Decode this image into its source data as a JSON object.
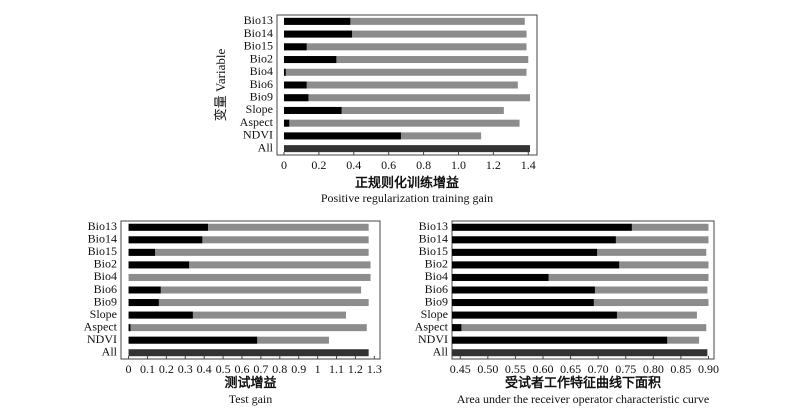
{
  "chart_data": [
    {
      "type": "bar",
      "orientation": "horizontal",
      "y_label": "变量 Variable",
      "x_label": "正规则化训练增益",
      "x_label_en": "Positive regularization training gain",
      "categories": [
        "Bio13",
        "Bio14",
        "Bio15",
        "Bio2",
        "Bio4",
        "Bio6",
        "Bio9",
        "Slope",
        "Aspect",
        "NDVI",
        "All"
      ],
      "series": [
        {
          "color": "#8c8c8c",
          "values": [
            1.38,
            1.39,
            1.39,
            1.4,
            1.39,
            1.34,
            1.41,
            1.26,
            1.35,
            1.13,
            null
          ]
        },
        {
          "color": "#000000",
          "values": [
            0.38,
            0.39,
            0.13,
            0.3,
            0.01,
            0.13,
            0.14,
            0.33,
            0.03,
            0.67,
            null
          ]
        },
        {
          "color": "#333333",
          "values": [
            null,
            null,
            null,
            null,
            null,
            null,
            null,
            null,
            null,
            null,
            1.41
          ]
        }
      ],
      "xlim": [
        -0.04,
        1.45
      ],
      "xticks": [
        0,
        0.2,
        0.4,
        0.6,
        0.8,
        {
          "value": 1,
          "label": "1.0"
        },
        1.2,
        1.4
      ]
    },
    {
      "type": "bar",
      "orientation": "horizontal",
      "x_label": "测试增益",
      "x_label_en": "Test gain",
      "categories": [
        "Bio13",
        "Bio14",
        "Bio15",
        "Bio2",
        "Bio4",
        "Bio6",
        "Bio9",
        "Slope",
        "Aspect",
        "NDVI",
        "All"
      ],
      "series": [
        {
          "color": "#8c8c8c",
          "values": [
            1.27,
            1.27,
            1.27,
            1.28,
            1.28,
            1.23,
            1.27,
            1.15,
            1.26,
            1.06,
            null
          ]
        },
        {
          "color": "#000000",
          "values": [
            0.42,
            0.39,
            0.14,
            0.32,
            0,
            0.17,
            0.16,
            0.34,
            0.01,
            0.68,
            null
          ]
        },
        {
          "color": "#333333",
          "values": [
            null,
            null,
            null,
            null,
            null,
            null,
            null,
            null,
            null,
            null,
            1.27
          ]
        }
      ],
      "xlim": [
        -0.04,
        1.33
      ],
      "xticks": [
        0,
        0.1,
        0.2,
        0.3,
        0.4,
        0.5,
        0.6,
        0.7,
        0.8,
        0.9,
        1,
        1.1,
        1.2,
        1.3
      ]
    },
    {
      "type": "bar",
      "orientation": "horizontal",
      "x_label": "受试者工作特征曲线下面积",
      "x_label_en": "Area under the receiver operator characteristic curve",
      "categories": [
        "Bio13",
        "Bio14",
        "Bio15",
        "Bio2",
        "Bio4",
        "Bio6",
        "Bio9",
        "Slope",
        "Aspect",
        "NDVI",
        "All"
      ],
      "series": [
        {
          "color": "#8c8c8c",
          "values": [
            0.9,
            0.9,
            0.896,
            0.9,
            0.9,
            0.898,
            0.9,
            0.879,
            0.896,
            0.883,
            null
          ]
        },
        {
          "color": "#000000",
          "values": [
            0.761,
            0.732,
            0.698,
            0.738,
            0.61,
            0.694,
            0.692,
            0.734,
            0.452,
            0.825,
            null
          ]
        },
        {
          "color": "#333333",
          "values": [
            null,
            null,
            null,
            null,
            null,
            null,
            null,
            null,
            null,
            null,
            0.898
          ]
        }
      ],
      "xlim": [
        0.435,
        0.91
      ],
      "xticks": [
        0.45,
        {
          "value": 0.5,
          "label": "0.50"
        },
        0.55,
        {
          "value": 0.6,
          "label": "0.60"
        },
        0.65,
        {
          "value": 0.7,
          "label": "0.70"
        },
        0.75,
        {
          "value": 0.8,
          "label": "0.80"
        },
        0.85,
        {
          "value": 0.9,
          "label": "0.90"
        }
      ]
    }
  ]
}
